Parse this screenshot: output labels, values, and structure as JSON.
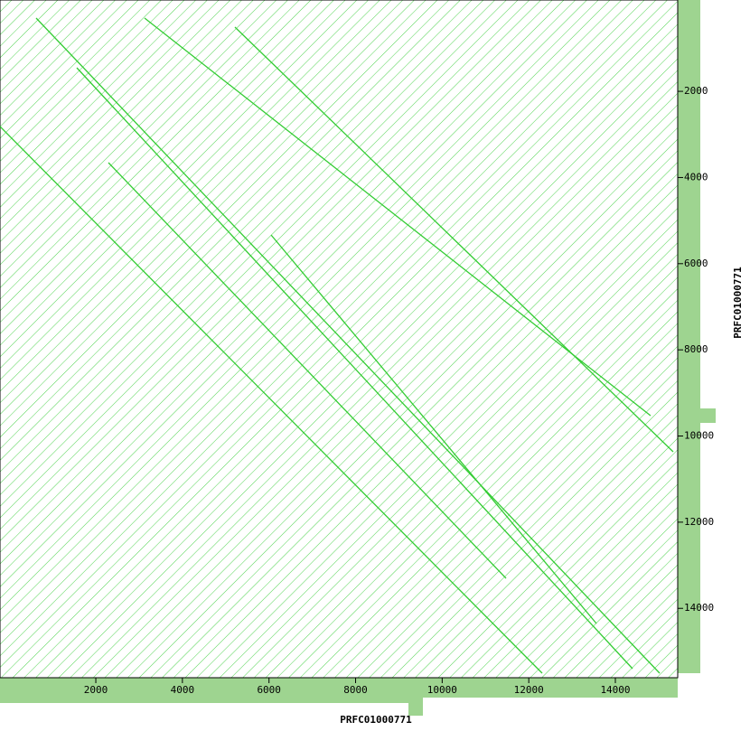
{
  "chart_data": {
    "type": "dotplot",
    "xlabel": "PRFC01000771",
    "ylabel": "PRFC01000771",
    "xlim": [
      -213,
      15440
    ],
    "ylim": [
      -120,
      15610
    ],
    "xticks": [
      2000,
      4000,
      6000,
      8000,
      10000,
      12000,
      14000
    ],
    "yticks": [
      2000,
      4000,
      6000,
      8000,
      10000,
      12000,
      14000
    ],
    "color": "#33cc33",
    "axis_color": "#9ed490"
  }
}
